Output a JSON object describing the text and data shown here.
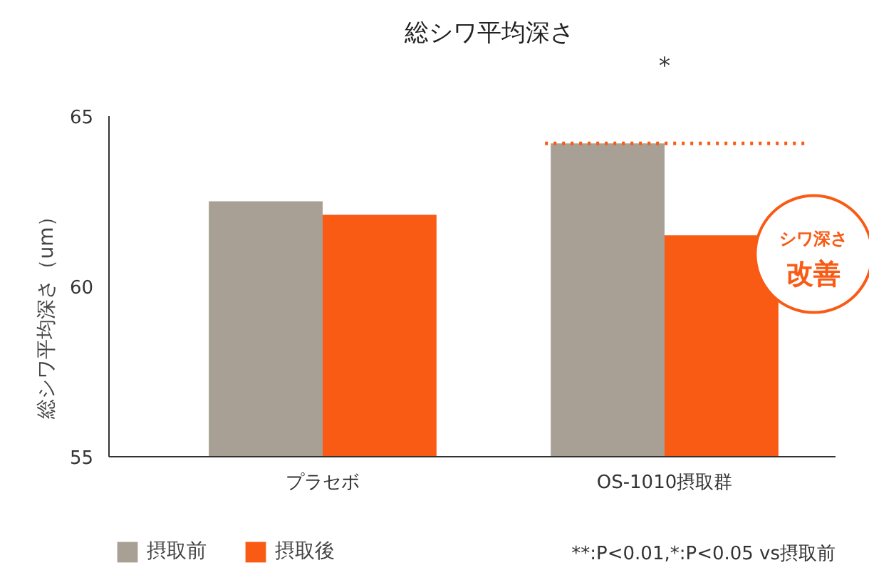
{
  "chart_data": {
    "type": "bar",
    "title": "総シワ平均深さ",
    "ylabel": "総シワ平均深さ（um）",
    "categories": [
      "プラセボ",
      "OS-1010摂取群"
    ],
    "series": [
      {
        "name": "摂取前",
        "color": "#a8a094",
        "values": [
          62.5,
          64.2
        ]
      },
      {
        "name": "摂取後",
        "color": "#f95a14",
        "values": [
          62.1,
          61.5
        ]
      }
    ],
    "ylim": [
      55,
      65
    ],
    "yticks": [
      55,
      60,
      65
    ],
    "grid": false,
    "legend": "bottom",
    "ref_lines": [
      {
        "axis": "y",
        "value": 64.2,
        "color": "#f95a14",
        "line_style": "dotted"
      }
    ],
    "annotations": [
      "*",
      "シワ深さ",
      "改善",
      "**:P<0.01,*:P<0.05 vs摂取前"
    ]
  }
}
